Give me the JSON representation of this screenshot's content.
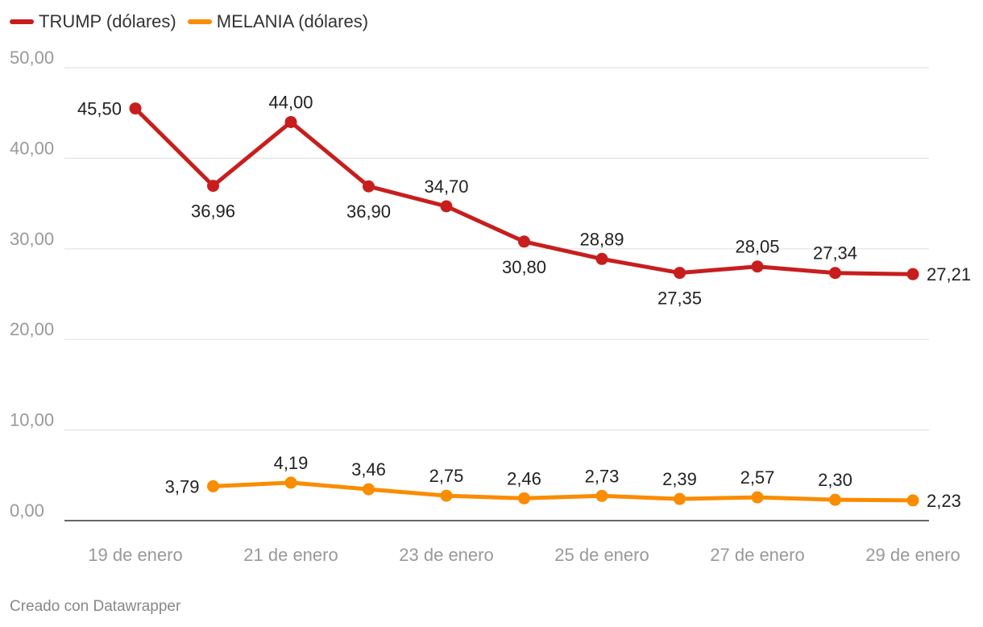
{
  "chart_data": {
    "type": "line",
    "title": "",
    "xlabel": "",
    "ylabel": "",
    "x": [
      "19 de enero",
      "20 de enero",
      "21 de enero",
      "22 de enero",
      "23 de enero",
      "24 de enero",
      "25 de enero",
      "26 de enero",
      "27 de enero",
      "28 de enero",
      "29 de enero"
    ],
    "x_tick_labels": [
      "19 de enero",
      "21 de enero",
      "23 de enero",
      "25 de enero",
      "27 de enero",
      "29 de enero"
    ],
    "y_tick_labels": [
      "0,00",
      "10,00",
      "20,00",
      "30,00",
      "40,00",
      "50,00"
    ],
    "y_ticks": [
      0,
      10,
      20,
      30,
      40,
      50
    ],
    "ylim": [
      0,
      50
    ],
    "grid": true,
    "legend_position": "top-left",
    "series": [
      {
        "name": "TRUMP (dólares)",
        "color": "#c71e1d",
        "values": [
          45.5,
          36.96,
          44.0,
          36.9,
          34.7,
          30.8,
          28.89,
          27.35,
          28.05,
          27.34,
          27.21
        ],
        "labels": [
          "45,50",
          "36,96",
          "44,00",
          "36,90",
          "34,70",
          "30,80",
          "28,89",
          "27,35",
          "28,05",
          "27,34",
          "27,21"
        ],
        "label_positions": [
          "left",
          "below",
          "above",
          "below",
          "above",
          "below",
          "above",
          "below",
          "above",
          "above",
          "right"
        ]
      },
      {
        "name": "MELANIA (dólares)",
        "color": "#fa8c00",
        "values": [
          null,
          3.79,
          4.19,
          3.46,
          2.75,
          2.46,
          2.73,
          2.39,
          2.57,
          2.3,
          2.23
        ],
        "labels": [
          null,
          "3,79",
          "4,19",
          "3,46",
          "2,75",
          "2,46",
          "2,73",
          "2,39",
          "2,57",
          "2,30",
          "2,23"
        ],
        "label_positions": [
          null,
          "left",
          "above",
          "above",
          "above",
          "above",
          "above",
          "above",
          "above",
          "above",
          "right"
        ]
      }
    ]
  },
  "footer": {
    "source_text": "Creado con Datawrapper"
  }
}
